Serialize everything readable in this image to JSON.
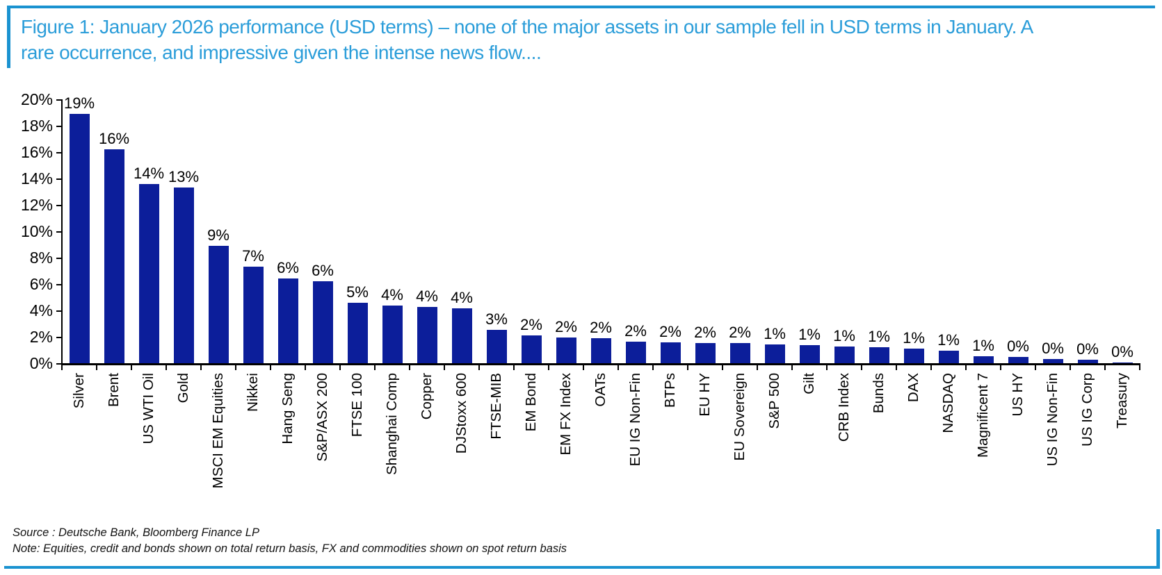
{
  "figure": {
    "title": "Figure 1: January 2026 performance (USD terms) – none of the major assets in our sample fell in USD terms in January. A\nrare occurrence, and impressive given the intense news flow...."
  },
  "chart_data": {
    "type": "bar",
    "title": "",
    "xlabel": "",
    "ylabel": "",
    "ylim": [
      0,
      20
    ],
    "ytick_step": 2,
    "ytick_suffix": "%",
    "grid": false,
    "legend": false,
    "bar_color": "#0c1e9a",
    "categories": [
      "Silver",
      "Brent",
      "US WTI Oil",
      "Gold",
      "MSCI EM Equities",
      "Nikkei",
      "Hang Seng",
      "S&P/ASX 200",
      "FTSE 100",
      "Shanghai Comp",
      "Copper",
      "DJStoxx 600",
      "FTSE-MIB",
      "EM Bond",
      "EM FX Index",
      "OATs",
      "EU IG Non-Fin",
      "BTPs",
      "EU HY",
      "EU Sovereign",
      "S&P 500",
      "Gilt",
      "CRB Index",
      "Bunds",
      "DAX",
      "NASDAQ",
      "Magnificent 7",
      "US HY",
      "US IG Non-Fin",
      "US IG Corp",
      "Treasury"
    ],
    "values": [
      18.9,
      16.2,
      13.6,
      13.3,
      8.9,
      7.3,
      6.4,
      6.2,
      4.6,
      4.35,
      4.25,
      4.15,
      2.55,
      2.1,
      1.95,
      1.9,
      1.65,
      1.6,
      1.55,
      1.55,
      1.4,
      1.35,
      1.25,
      1.2,
      1.1,
      0.95,
      0.55,
      0.45,
      0.3,
      0.28,
      0.05
    ],
    "bar_labels": [
      "19%",
      "16%",
      "14%",
      "13%",
      "9%",
      "7%",
      "6%",
      "6%",
      "5%",
      "4%",
      "4%",
      "4%",
      "3%",
      "2%",
      "2%",
      "2%",
      "2%",
      "2%",
      "2%",
      "2%",
      "1%",
      "1%",
      "1%",
      "1%",
      "1%",
      "1%",
      "1%",
      "0%",
      "0%",
      "0%",
      "0%"
    ]
  },
  "footer": {
    "source": "Source : Deutsche Bank, Bloomberg Finance LP",
    "note": "Note: Equities, credit and bonds shown on total return basis, FX and commodities shown on spot return basis"
  },
  "colors": {
    "title_blue": "#2b9dd9",
    "rule_blue": "#1a92d0",
    "bar_navy": "#0c1e9a",
    "axis_black": "#000000"
  }
}
